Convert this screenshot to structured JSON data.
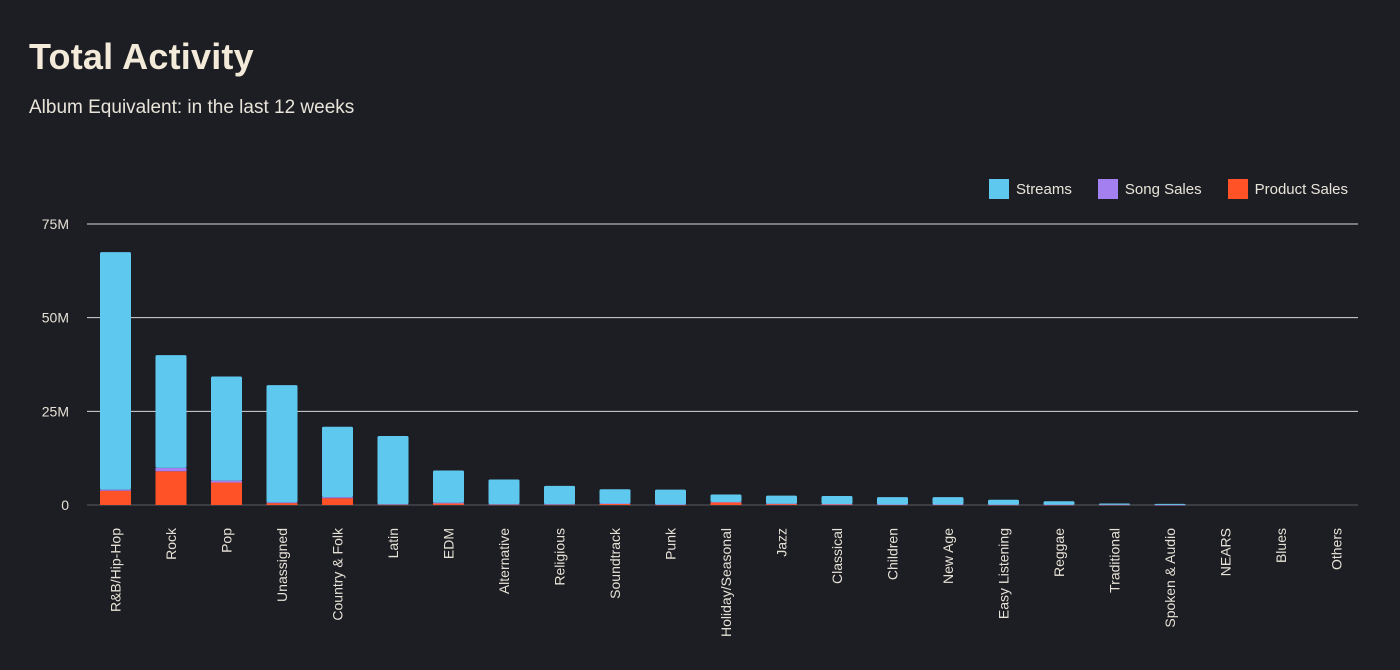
{
  "header": {
    "title": "Total Activity",
    "subtitle": "Album Equivalent: in the last 12 weeks"
  },
  "colors": {
    "streams": "#5ec8ee",
    "song_sales": "#a47ff0",
    "product_sales": "#ff5227",
    "background": "#1d1e23",
    "grid": "#d8d8d8"
  },
  "chart_data": {
    "type": "bar",
    "stacked": true,
    "ylim": [
      0,
      75000000
    ],
    "yticks": [
      0,
      25000000,
      50000000,
      75000000
    ],
    "ytick_labels": [
      "0",
      "25M",
      "50M",
      "75M"
    ],
    "legend_position": "top-right",
    "grid": true,
    "categories": [
      "R&B/Hip-Hop",
      "Rock",
      "Pop",
      "Unassigned",
      "Country & Folk",
      "Latin",
      "EDM",
      "Alternative",
      "Religious",
      "Soundtrack",
      "Punk",
      "Holiday/Seasonal",
      "Jazz",
      "Classical",
      "Children",
      "New Age",
      "Easy Listening",
      "Reggae",
      "Traditional",
      "Spoken & Audio",
      "NEARS",
      "Blues",
      "Others"
    ],
    "series": [
      {
        "name": "Product Sales",
        "color": "#ff5227",
        "values": [
          3800000,
          9000000,
          6000000,
          500000,
          1800000,
          100000,
          400000,
          100000,
          100000,
          300000,
          50000,
          700000,
          300000,
          200000,
          100000,
          100000,
          50000,
          50000,
          50000,
          20000,
          0,
          0,
          0
        ]
      },
      {
        "name": "Song Sales",
        "color": "#a47ff0",
        "values": [
          300000,
          900000,
          500000,
          200000,
          300000,
          100000,
          200000,
          100000,
          100000,
          100000,
          100000,
          100000,
          50000,
          50000,
          50000,
          50000,
          30000,
          30000,
          20000,
          10000,
          0,
          0,
          0
        ]
      },
      {
        "name": "Streams",
        "color": "#5ec8ee",
        "values": [
          63400000,
          30100000,
          27800000,
          31300000,
          18800000,
          18200000,
          8600000,
          6600000,
          4900000,
          3800000,
          3950000,
          2000000,
          2150000,
          2150000,
          1950000,
          1950000,
          1320000,
          920000,
          330000,
          270000,
          0,
          0,
          0
        ]
      }
    ]
  },
  "legend": [
    {
      "label": "Streams",
      "color": "#5ec8ee"
    },
    {
      "label": "Song Sales",
      "color": "#a47ff0"
    },
    {
      "label": "Product Sales",
      "color": "#ff5227"
    }
  ]
}
